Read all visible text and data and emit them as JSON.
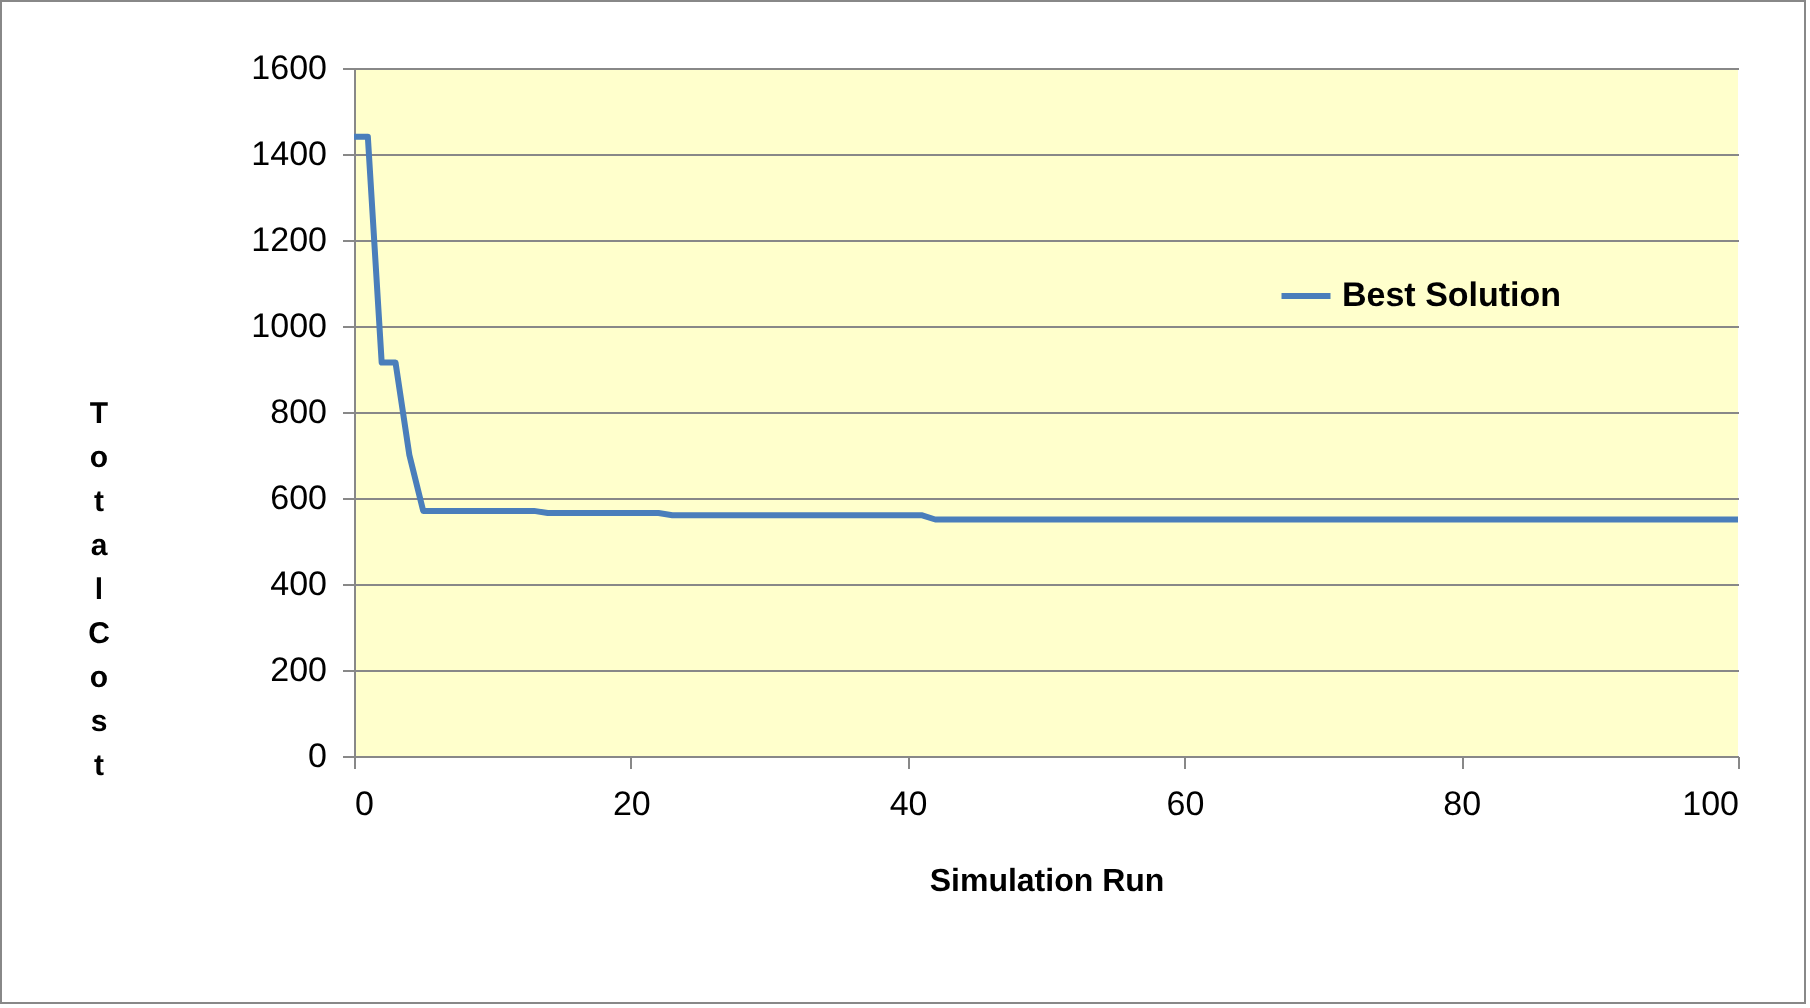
{
  "chart_data": {
    "type": "line",
    "xlabel": "Simulation Run",
    "ylabel": "Total Cost",
    "x": [
      0,
      1,
      2,
      3,
      4,
      5,
      13,
      14,
      22,
      23,
      41,
      42,
      100
    ],
    "series": [
      {
        "name": "Best Solution",
        "color": "#4a7ebb",
        "values": [
          1440,
          1440,
          915,
          915,
          700,
          570,
          570,
          565,
          565,
          560,
          560,
          550,
          550
        ]
      }
    ],
    "xlim": [
      0,
      100
    ],
    "xticks": [
      0,
      20,
      40,
      60,
      80,
      100
    ],
    "ylim": [
      0,
      1600
    ],
    "yticks": [
      0,
      200,
      400,
      600,
      800,
      1000,
      1200,
      1400,
      1600
    ],
    "grid": "y",
    "legend": "right",
    "marker": "none",
    "line_style": "solid"
  }
}
